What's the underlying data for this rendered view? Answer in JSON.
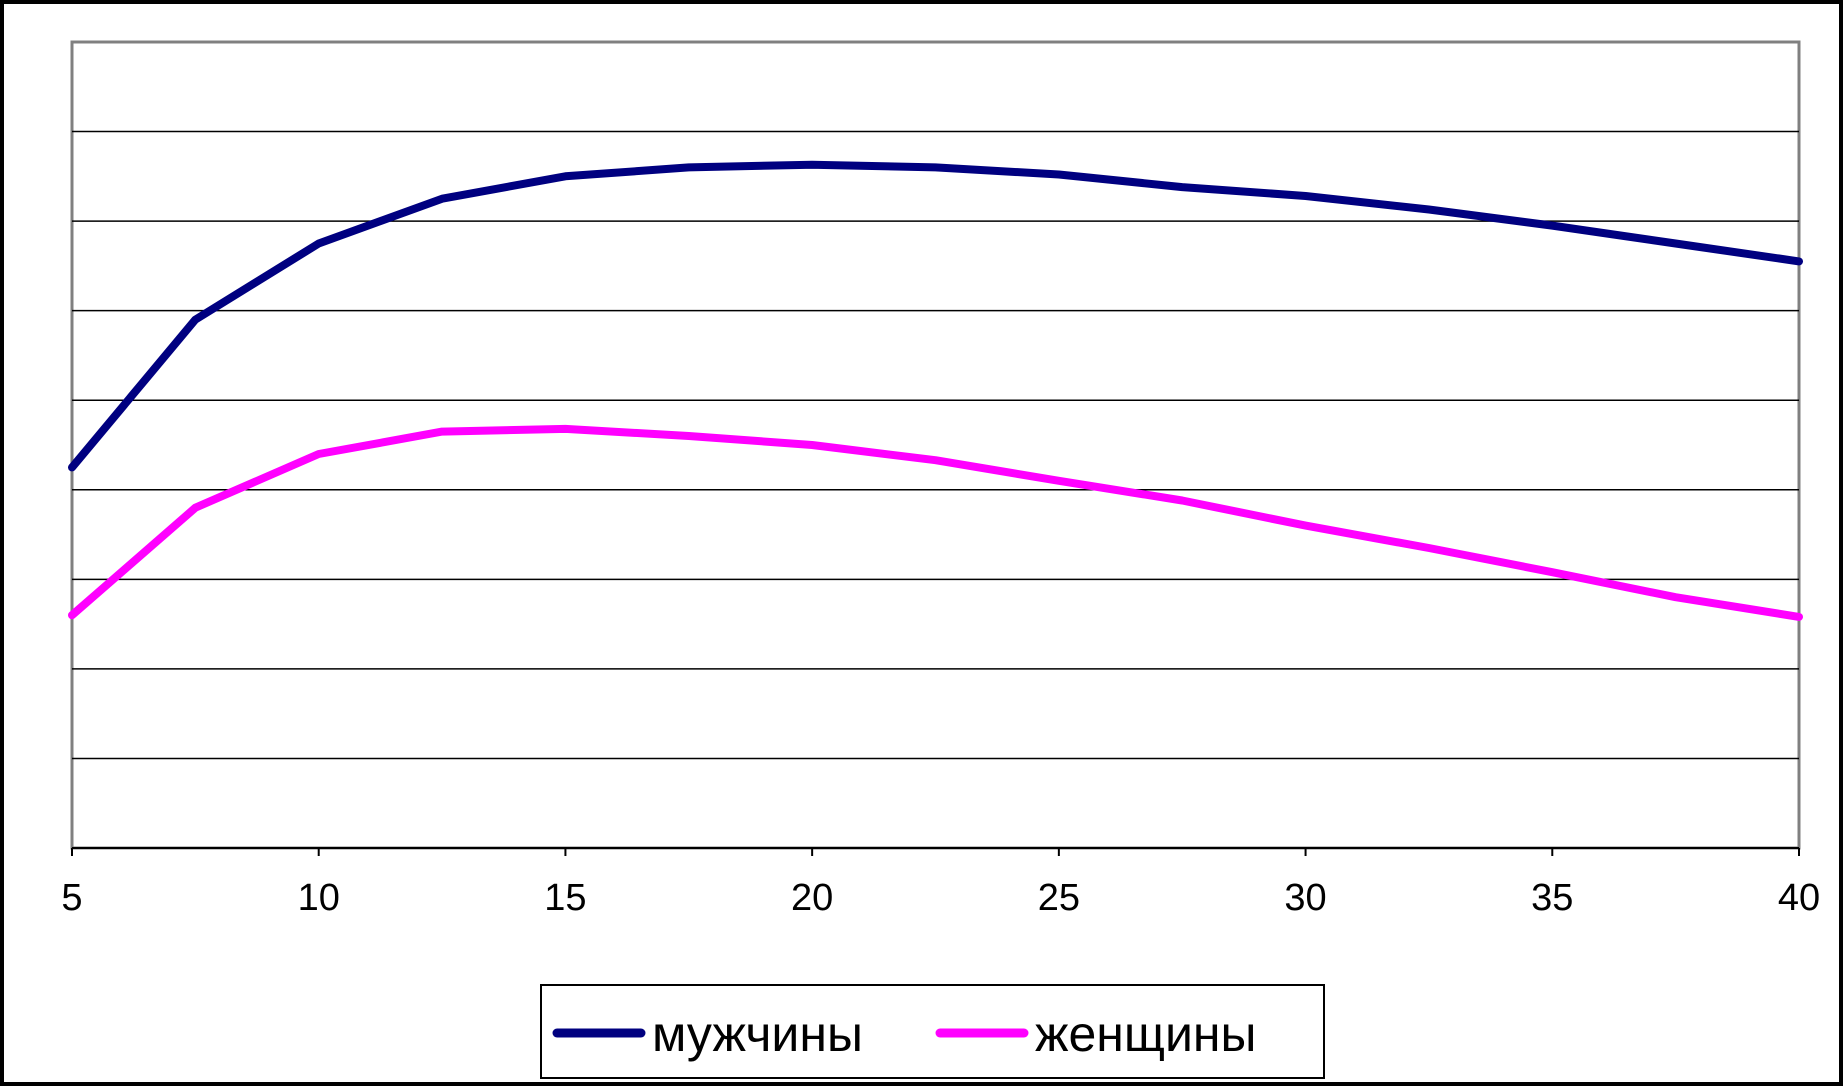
{
  "chart_data": {
    "type": "line",
    "title": "",
    "xlabel": "",
    "ylabel": "",
    "xlim": [
      5,
      40
    ],
    "ylim": [
      0,
      9
    ],
    "x_ticks": [
      "5",
      "10",
      "15",
      "20",
      "25",
      "30",
      "35",
      "40"
    ],
    "grid": "horizontal",
    "legend_position": "bottom",
    "x": [
      5,
      7.5,
      10,
      12.5,
      15,
      17.5,
      20,
      22.5,
      25,
      27.5,
      30,
      32.5,
      35,
      37.5,
      40
    ],
    "series": [
      {
        "name": "мужчины",
        "color": "#000080",
        "values": [
          4.25,
          5.9,
          6.75,
          7.25,
          7.5,
          7.6,
          7.63,
          7.6,
          7.52,
          7.38,
          7.28,
          7.13,
          6.95,
          6.75,
          6.55
        ]
      },
      {
        "name": "женщины",
        "color": "#ff00ff",
        "values": [
          2.6,
          3.8,
          4.4,
          4.65,
          4.68,
          4.6,
          4.5,
          4.33,
          4.1,
          3.88,
          3.6,
          3.35,
          3.08,
          2.8,
          2.58
        ]
      }
    ]
  }
}
